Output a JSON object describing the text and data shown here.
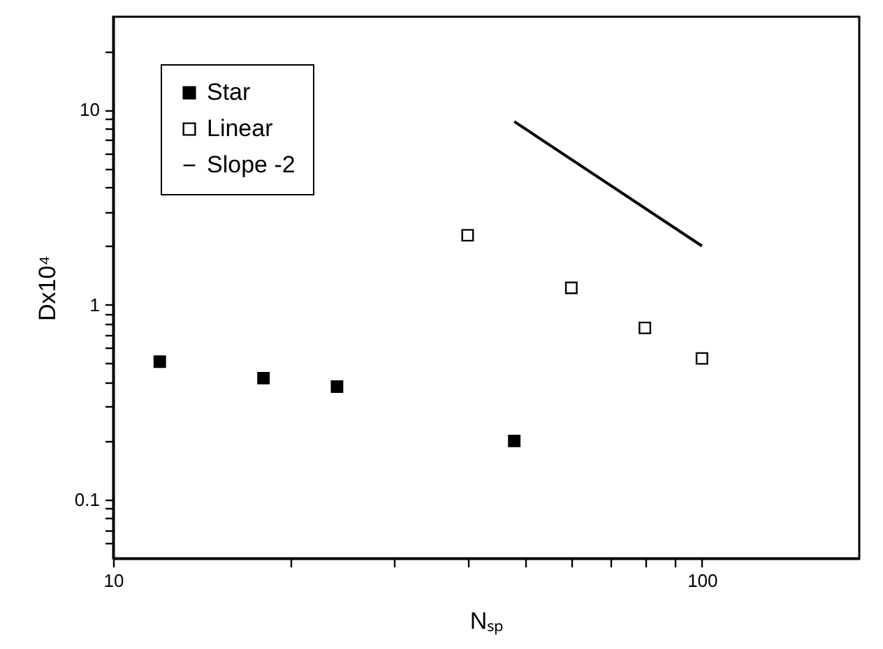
{
  "chart_data": {
    "type": "scatter",
    "xlabel": "Nₛₚ",
    "ylabel": "Dx10⁴",
    "log": "xy",
    "legend": "top left",
    "grid": false,
    "xlim": [
      10,
      185
    ],
    "ylim": [
      0.05,
      30
    ],
    "xticks": [
      10,
      {
        "value": 20,
        "label": null
      },
      {
        "value": 30,
        "label": null
      },
      {
        "value": 40,
        "label": null
      },
      {
        "value": 50,
        "label": null
      },
      {
        "value": 60,
        "label": null
      },
      {
        "value": 70,
        "label": null
      },
      {
        "value": 80,
        "label": null
      },
      {
        "value": 90,
        "label": null
      },
      100
    ],
    "yticks": [
      {
        "value": 0.06,
        "label": null
      },
      {
        "value": 0.07,
        "label": null
      },
      {
        "value": 0.08,
        "label": null
      },
      {
        "value": 0.09,
        "label": null
      },
      0.1,
      {
        "value": 0.2,
        "label": null
      },
      {
        "value": 0.3,
        "label": null
      },
      {
        "value": 0.4,
        "label": null
      },
      {
        "value": 0.5,
        "label": null
      },
      {
        "value": 0.6,
        "label": null
      },
      {
        "value": 0.7,
        "label": null
      },
      {
        "value": 0.8,
        "label": null
      },
      {
        "value": 0.9,
        "label": null
      },
      1,
      {
        "value": 2,
        "label": null
      },
      {
        "value": 3,
        "label": null
      },
      {
        "value": 4,
        "label": null
      },
      {
        "value": 5,
        "label": null
      },
      {
        "value": 6,
        "label": null
      },
      {
        "value": 7,
        "label": null
      },
      {
        "value": 8,
        "label": null
      },
      {
        "value": 9,
        "label": null
      },
      10,
      {
        "value": 20,
        "label": null
      }
    ],
    "series": [
      {
        "name": "Star",
        "color": "#000000",
        "marker": "square",
        "x": [
          12,
          18,
          24,
          48
        ],
        "values": [
          0.51,
          0.42,
          0.38,
          0.2
        ]
      },
      {
        "name": "Linear",
        "color": "#000000",
        "marker": "square",
        "x": [
          40,
          60,
          80,
          100
        ],
        "values": [
          2.27,
          1.22,
          0.76,
          0.53
        ]
      },
      {
        "name": "Slope -2",
        "type": "line",
        "marker": "none",
        "color": "#000000",
        "x": [
          48,
          100
        ],
        "values": [
          8.7,
          2.0
        ]
      }
    ]
  }
}
